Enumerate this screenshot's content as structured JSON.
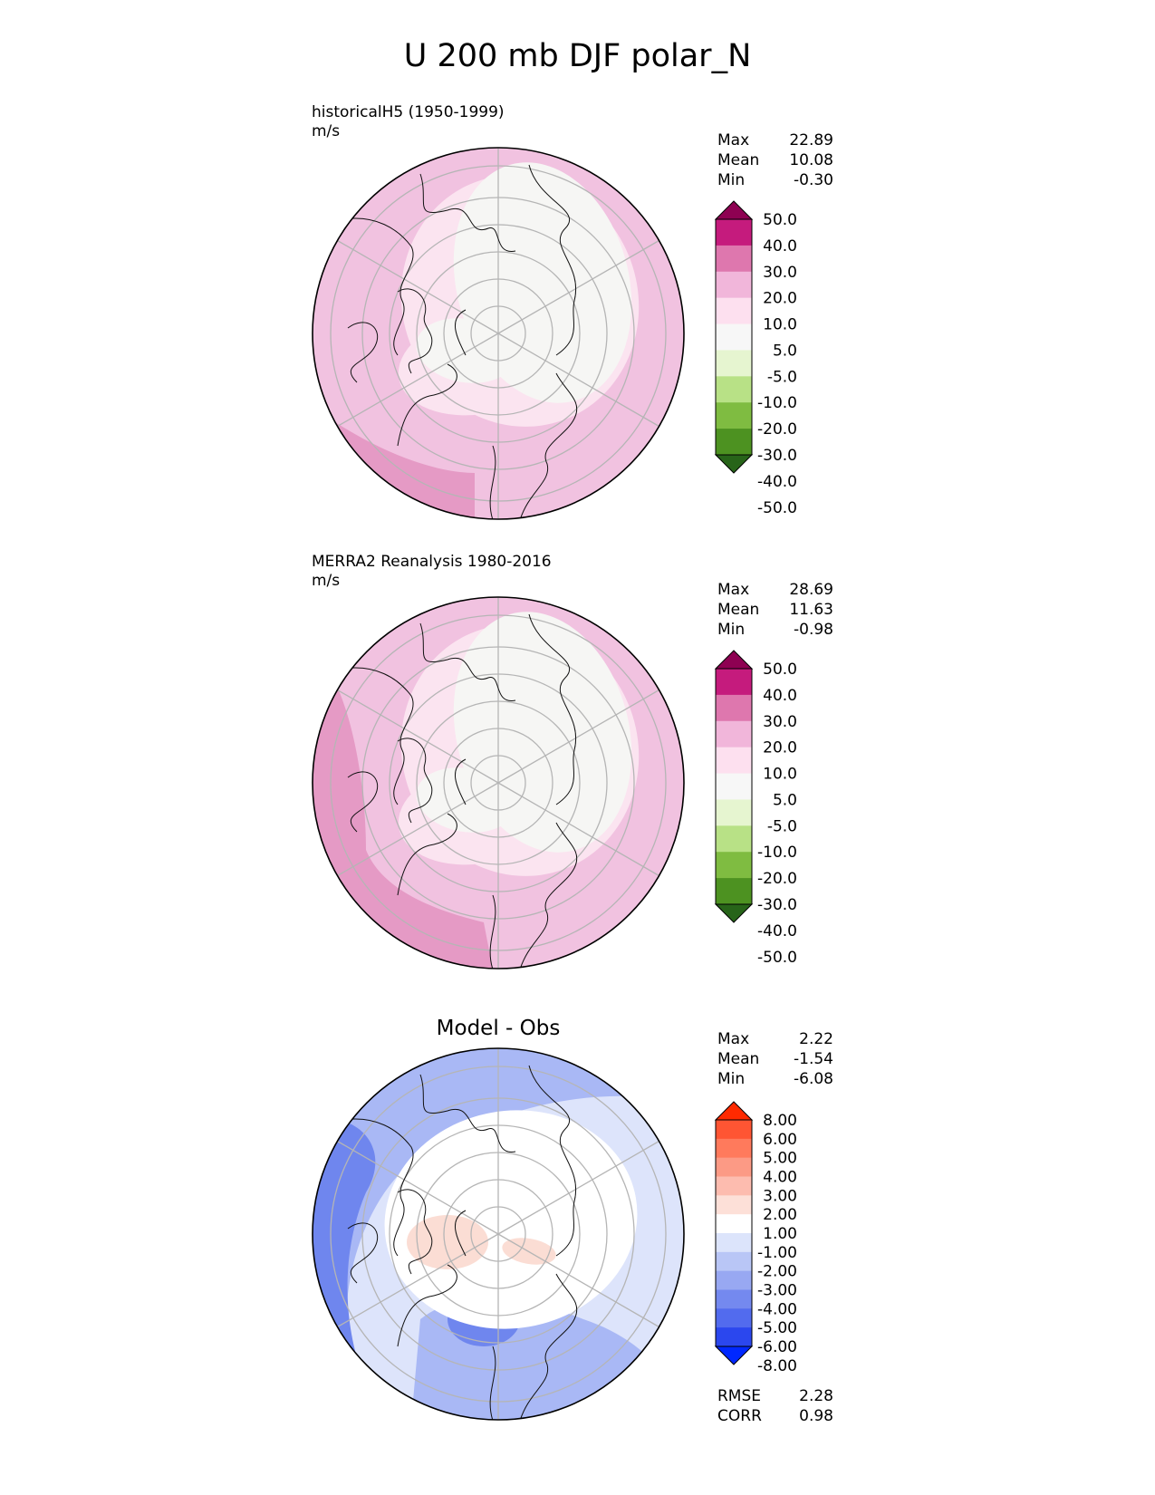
{
  "title": "U 200 mb DJF polar_N",
  "panels": [
    {
      "label": "historicalH5 (1950-1999)",
      "units": "m/s",
      "stats": [
        {
          "label": "Max",
          "value": "22.89"
        },
        {
          "label": "Mean",
          "value": "10.08"
        },
        {
          "label": "Min",
          "value": "-0.30"
        }
      ],
      "colorbar_ticks": [
        "50.0",
        "40.0",
        "30.0",
        "20.0",
        "10.0",
        "5.0",
        "-5.0",
        "-10.0",
        "-20.0",
        "-30.0",
        "-40.0",
        "-50.0"
      ],
      "colors": [
        "#8e0152",
        "#c51b7d",
        "#de77ae",
        "#f1b6da",
        "#fde0ef",
        "#f7f7f7",
        "#e6f5d0",
        "#b8e186",
        "#7fbc41",
        "#4d9221",
        "#276419"
      ]
    },
    {
      "label": "MERRA2 Reanalysis 1980-2016",
      "units": "m/s",
      "stats": [
        {
          "label": "Max",
          "value": "28.69"
        },
        {
          "label": "Mean",
          "value": "11.63"
        },
        {
          "label": "Min",
          "value": "-0.98"
        }
      ],
      "colorbar_ticks": [
        "50.0",
        "40.0",
        "30.0",
        "20.0",
        "10.0",
        "5.0",
        "-5.0",
        "-10.0",
        "-20.0",
        "-30.0",
        "-40.0",
        "-50.0"
      ],
      "colors": [
        "#8e0152",
        "#c51b7d",
        "#de77ae",
        "#f1b6da",
        "#fde0ef",
        "#f7f7f7",
        "#e6f5d0",
        "#b8e186",
        "#7fbc41",
        "#4d9221",
        "#276419"
      ]
    },
    {
      "title": "Model - Obs",
      "stats": [
        {
          "label": "Max",
          "value": "2.22"
        },
        {
          "label": "Mean",
          "value": "-1.54"
        },
        {
          "label": "Min",
          "value": "-6.08"
        }
      ],
      "colorbar_ticks": [
        "8.00",
        "6.00",
        "5.00",
        "4.00",
        "3.00",
        "2.00",
        "1.00",
        "-1.00",
        "-2.00",
        "-3.00",
        "-4.00",
        "-5.00",
        "-6.00",
        "-8.00"
      ],
      "colors": [
        "#ff2a00",
        "#ff5533",
        "#ff7a5c",
        "#fc9a85",
        "#fdbcaf",
        "#fde0d8",
        "#ffffff",
        "#dce4fb",
        "#b9c6f6",
        "#98a8f2",
        "#7489ef",
        "#526bee",
        "#2b47ee",
        "#0028ff"
      ],
      "footer_stats": [
        {
          "label": "RMSE",
          "value": "2.28"
        },
        {
          "label": "CORR",
          "value": "0.98"
        }
      ]
    }
  ]
}
